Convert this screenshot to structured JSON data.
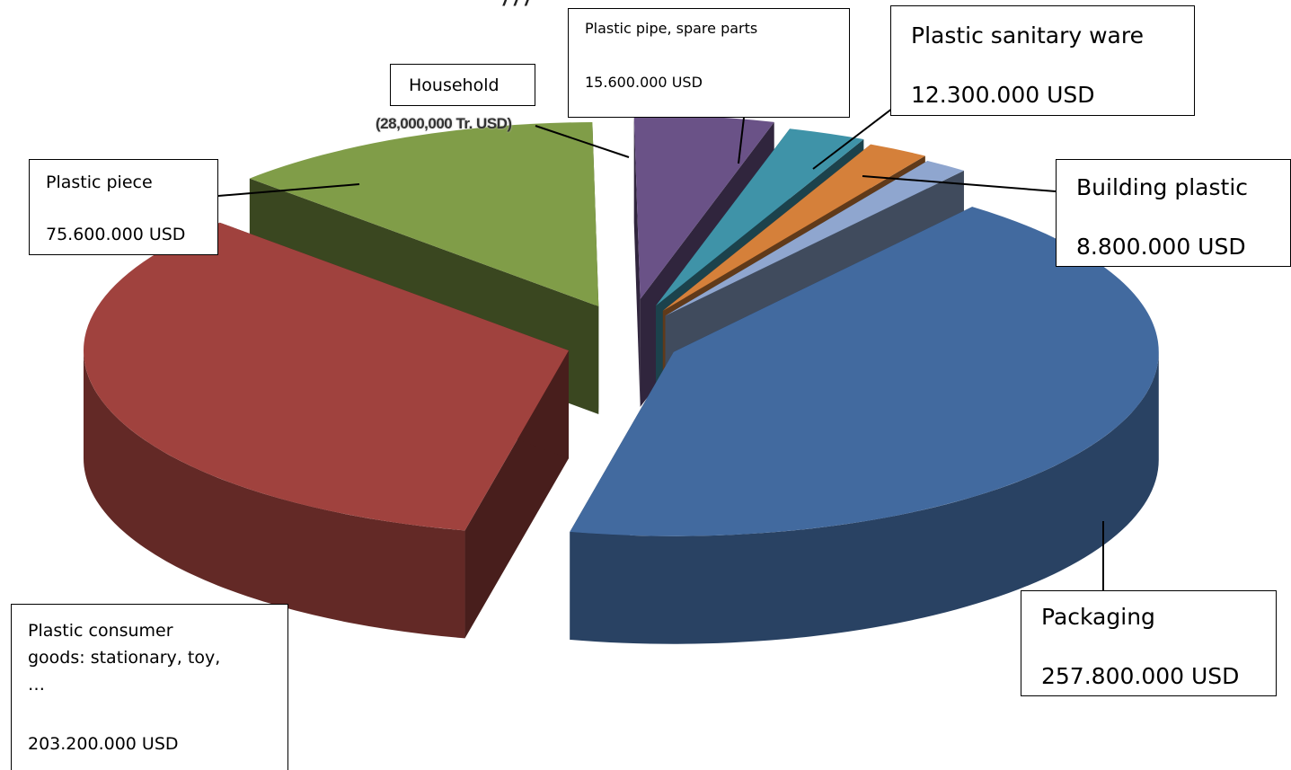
{
  "chart_data": {
    "type": "pie",
    "style": "3d-exploded",
    "unit": "USD",
    "slices": [
      {
        "key": "packaging",
        "label": "Packaging",
        "value_text": "257.800.000 USD",
        "value": 257800000,
        "color": "#426a9f"
      },
      {
        "key": "consumer",
        "label": "Plastic consumer goods: stationary, toy, …",
        "value_text": "203.200.000 USD",
        "value": 203200000,
        "color": "#a0423e"
      },
      {
        "key": "piece",
        "label": "Plastic piece",
        "value_text": "75.600.000 USD",
        "value": 75600000,
        "color": "#809d48"
      },
      {
        "key": "household",
        "label": "Household",
        "value_text": "(28,000,000 Tr. USD)",
        "value": 28000000,
        "color": "#6a5287"
      },
      {
        "key": "pipe",
        "label": "Plastic pipe, spare parts",
        "value_text": "15.600.000 USD",
        "value": 15600000,
        "color": "#3f93a8"
      },
      {
        "key": "sanitary",
        "label": "Plastic sanitary ware",
        "value_text": "12.300.000 USD",
        "value": 12300000,
        "color": "#d5803a"
      },
      {
        "key": "building",
        "label": "Building plastic",
        "value_text": "8.800.000 USD",
        "value": 8800000,
        "color": "#8fa6cf"
      }
    ]
  }
}
